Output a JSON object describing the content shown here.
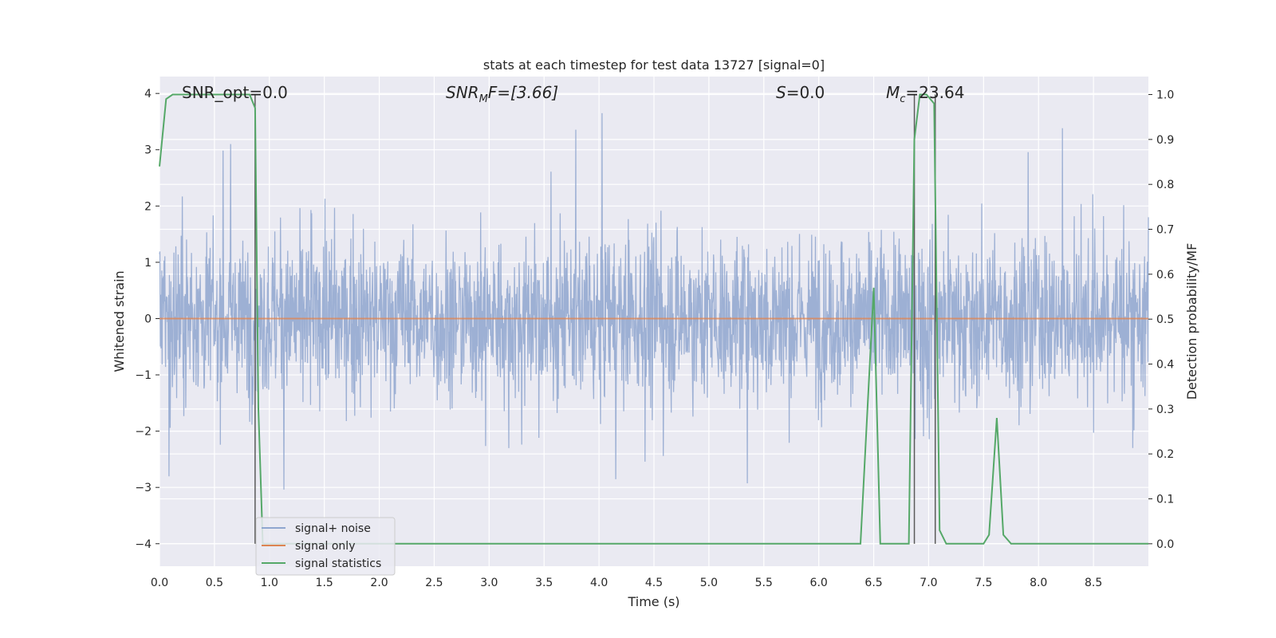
{
  "chart_data": {
    "type": "line",
    "title": "stats at each timestep for test data 13727 [signal=0]",
    "xlabel": "Time (s)",
    "ylabel": "Whitened strain",
    "ylabel_right": "Detection probability/MF",
    "xlim": [
      0.0,
      9.0
    ],
    "ylim": [
      -4.4,
      4.3
    ],
    "ylim_right": [
      -0.05,
      1.04
    ],
    "x_ticks": [
      "0.0",
      "0.5",
      "1.0",
      "1.5",
      "2.0",
      "2.5",
      "3.0",
      "3.5",
      "4.0",
      "4.5",
      "5.0",
      "5.5",
      "6.0",
      "6.5",
      "7.0",
      "7.5",
      "8.0",
      "8.5"
    ],
    "y_ticks": [
      "4",
      "3",
      "2",
      "1",
      "0",
      "−1",
      "−2",
      "−3",
      "−4"
    ],
    "y_ticks_right": [
      "1.0",
      "0.9",
      "0.8",
      "0.7",
      "0.6",
      "0.5",
      "0.4",
      "0.3",
      "0.2",
      "0.1",
      "0.0"
    ],
    "annotations": {
      "snr_opt": "SNR_opt=0.0",
      "snr_mf_base": "SNR",
      "snr_mf_sub": "M",
      "snr_mf_tail": "F=[3.66]",
      "s_var": "S",
      "s_tail": "=0.0",
      "mc_base": "M",
      "mc_sub": "c",
      "mc_tail": "=23.64"
    },
    "legend": {
      "placement": "lower-left",
      "entries": [
        "signal+ noise",
        "signal only",
        "signal statistics"
      ]
    },
    "grid": true,
    "colors": {
      "background": "#eaeaf2",
      "grid": "#ffffff",
      "noise": "#8fa6cf",
      "signal": "#dd8452",
      "stats": "#55a868",
      "marker": "#5a5a5a"
    },
    "series": [
      {
        "name": "signal+ noise",
        "description_stats": {
          "duration_s": 9.0,
          "typical_envelope": [
            -2.0,
            2.5
          ],
          "peak_max": 3.65,
          "peak_min": -3.75
        }
      },
      {
        "name": "signal only",
        "x": [
          0.0,
          9.0
        ],
        "y": [
          0.0,
          0.0
        ]
      },
      {
        "name": "signal statistics",
        "axis": "right",
        "x": [
          0.0,
          0.06,
          0.12,
          0.25,
          0.5,
          0.75,
          0.82,
          0.87,
          0.9,
          0.94,
          1.0,
          2.0,
          3.0,
          4.0,
          5.0,
          6.0,
          6.38,
          6.5,
          6.56,
          6.7,
          6.82,
          6.87,
          6.92,
          6.98,
          7.05,
          7.1,
          7.16,
          7.5,
          7.55,
          7.62,
          7.68,
          7.75,
          8.0,
          9.0
        ],
        "y": [
          0.84,
          0.99,
          1.0,
          1.0,
          1.0,
          1.0,
          1.0,
          0.97,
          0.3,
          0.0,
          0.0,
          0.0,
          0.0,
          0.0,
          0.0,
          0.0,
          0.0,
          0.57,
          0.0,
          0.0,
          0.0,
          0.9,
          1.0,
          1.0,
          0.98,
          0.03,
          0.0,
          0.0,
          0.02,
          0.28,
          0.02,
          0.0,
          0.0,
          0.0
        ]
      }
    ],
    "vertical_markers_x": [
      0.87,
      6.87,
      7.06
    ]
  }
}
